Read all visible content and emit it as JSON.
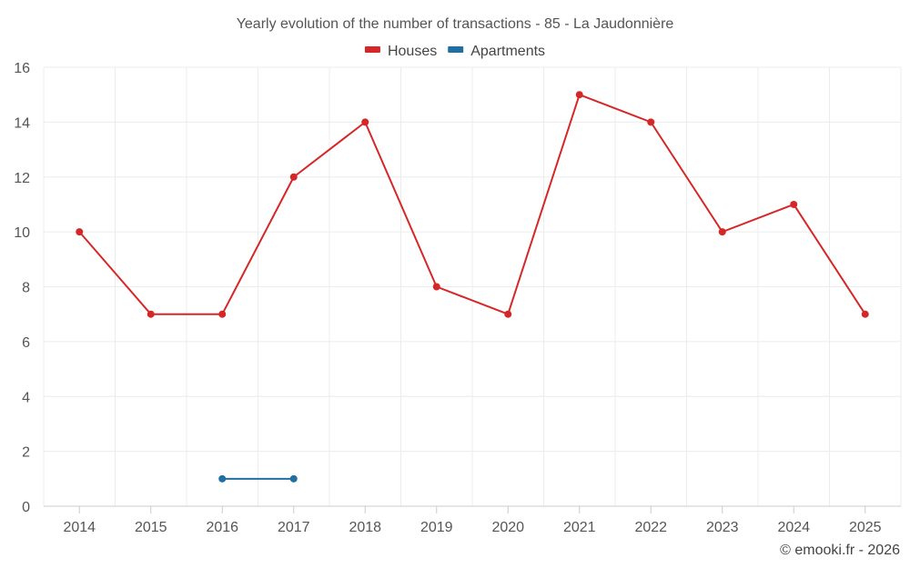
{
  "chart_data": {
    "type": "line",
    "title": "Yearly evolution of the number of transactions - 85 - La Jaudonnière",
    "xlabel": "",
    "ylabel": "",
    "categories": [
      "2014",
      "2015",
      "2016",
      "2017",
      "2018",
      "2019",
      "2020",
      "2021",
      "2022",
      "2023",
      "2024",
      "2025"
    ],
    "ylim": [
      0,
      16
    ],
    "yticks": [
      0,
      2,
      4,
      6,
      8,
      10,
      12,
      14,
      16
    ],
    "grid": true,
    "legend_position": "top-center",
    "series": [
      {
        "name": "Houses",
        "color": "#d62728",
        "values": [
          10,
          7,
          7,
          12,
          14,
          8,
          7,
          15,
          14,
          10,
          11,
          7
        ]
      },
      {
        "name": "Apartments",
        "color": "#1f6fa3",
        "values": [
          null,
          null,
          1,
          1,
          null,
          null,
          null,
          null,
          null,
          null,
          null,
          null
        ]
      }
    ]
  },
  "credit": "© emooki.fr - 2026"
}
